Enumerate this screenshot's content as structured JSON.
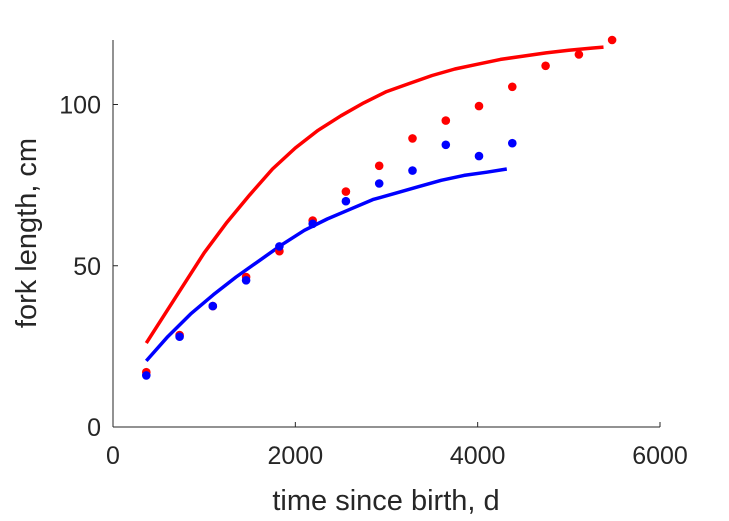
{
  "chart_data": {
    "type": "scatter",
    "title": "",
    "xlabel": "time since birth, d",
    "ylabel": "fork length, cm",
    "xlim": [
      0,
      6000
    ],
    "ylim": [
      0,
      120
    ],
    "xticks": [
      0,
      2000,
      4000,
      6000
    ],
    "yticks": [
      0,
      50,
      100
    ],
    "xtick_labels": [
      "0",
      "2000",
      "4000",
      "6000"
    ],
    "ytick_labels": [
      "0",
      "50",
      "100"
    ],
    "grid": false,
    "legend": "none",
    "series": [
      {
        "kind": "points",
        "color": "#ff0000",
        "points": [
          {
            "x": 365,
            "y": 17
          },
          {
            "x": 730,
            "y": 28.5
          },
          {
            "x": 1095,
            "y": 37.5
          },
          {
            "x": 1460,
            "y": 46.5
          },
          {
            "x": 1825,
            "y": 54.5
          },
          {
            "x": 2190,
            "y": 64
          },
          {
            "x": 2555,
            "y": 73
          },
          {
            "x": 2920,
            "y": 81
          },
          {
            "x": 3285,
            "y": 89.5
          },
          {
            "x": 3650,
            "y": 95
          },
          {
            "x": 4015,
            "y": 99.5
          },
          {
            "x": 4380,
            "y": 105.5
          },
          {
            "x": 4745,
            "y": 112
          },
          {
            "x": 5110,
            "y": 115.5
          },
          {
            "x": 5475,
            "y": 120
          }
        ]
      },
      {
        "kind": "points",
        "color": "#0000ff",
        "points": [
          {
            "x": 365,
            "y": 16
          },
          {
            "x": 730,
            "y": 28
          },
          {
            "x": 1095,
            "y": 37.5
          },
          {
            "x": 1460,
            "y": 45.5
          },
          {
            "x": 1825,
            "y": 56
          },
          {
            "x": 2190,
            "y": 63
          },
          {
            "x": 2555,
            "y": 70
          },
          {
            "x": 2920,
            "y": 75.5
          },
          {
            "x": 3285,
            "y": 79.5
          },
          {
            "x": 3650,
            "y": 87.5
          },
          {
            "x": 4015,
            "y": 84
          },
          {
            "x": 4380,
            "y": 88
          }
        ]
      },
      {
        "kind": "curve",
        "color": "#ff0000",
        "points": [
          {
            "x": 365,
            "y": 26.0
          },
          {
            "x": 750,
            "y": 43.0
          },
          {
            "x": 1000,
            "y": 54.0
          },
          {
            "x": 1250,
            "y": 63.5
          },
          {
            "x": 1500,
            "y": 72.0
          },
          {
            "x": 1750,
            "y": 80.0
          },
          {
            "x": 2000,
            "y": 86.5
          },
          {
            "x": 2250,
            "y": 92.0
          },
          {
            "x": 2500,
            "y": 96.5
          },
          {
            "x": 2750,
            "y": 100.5
          },
          {
            "x": 3000,
            "y": 104.0
          },
          {
            "x": 3250,
            "y": 106.5
          },
          {
            "x": 3500,
            "y": 109.0
          },
          {
            "x": 3750,
            "y": 111.0
          },
          {
            "x": 4000,
            "y": 112.5
          },
          {
            "x": 4250,
            "y": 114.0
          },
          {
            "x": 4500,
            "y": 115.0
          },
          {
            "x": 4750,
            "y": 116.0
          },
          {
            "x": 5000,
            "y": 116.8
          },
          {
            "x": 5250,
            "y": 117.5
          },
          {
            "x": 5380,
            "y": 117.8
          }
        ]
      },
      {
        "kind": "curve",
        "color": "#0000ff",
        "points": [
          {
            "x": 365,
            "y": 20.5
          },
          {
            "x": 600,
            "y": 28.0
          },
          {
            "x": 850,
            "y": 35.0
          },
          {
            "x": 1100,
            "y": 41.0
          },
          {
            "x": 1350,
            "y": 46.5
          },
          {
            "x": 1600,
            "y": 51.5
          },
          {
            "x": 1850,
            "y": 56.5
          },
          {
            "x": 2100,
            "y": 61.0
          },
          {
            "x": 2350,
            "y": 64.5
          },
          {
            "x": 2600,
            "y": 67.5
          },
          {
            "x": 2850,
            "y": 70.5
          },
          {
            "x": 3100,
            "y": 72.5
          },
          {
            "x": 3350,
            "y": 74.5
          },
          {
            "x": 3600,
            "y": 76.5
          },
          {
            "x": 3850,
            "y": 78.0
          },
          {
            "x": 4100,
            "y": 79.0
          },
          {
            "x": 4320,
            "y": 80.0
          }
        ]
      }
    ]
  }
}
